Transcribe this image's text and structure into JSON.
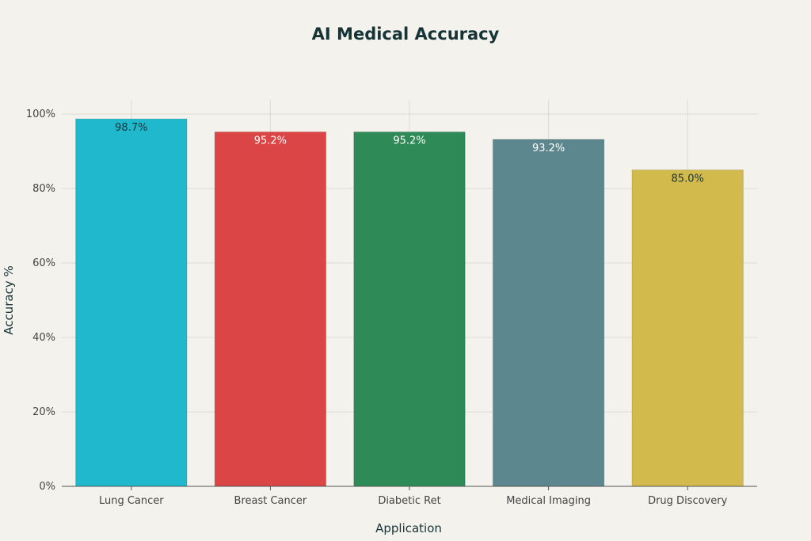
{
  "chart_data": {
    "type": "bar",
    "title": "AI Medical Accuracy",
    "xlabel": "Application",
    "ylabel": "Accuracy %",
    "categories": [
      "Lung Cancer",
      "Breast Cancer",
      "Diabetic Ret",
      "Medical Imaging",
      "Drug Discovery"
    ],
    "values": [
      98.7,
      95.2,
      95.2,
      93.2,
      85.0
    ],
    "data_labels": [
      "98.7%",
      "95.2%",
      "95.2%",
      "93.2%",
      "85.0%"
    ],
    "ylim": [
      0,
      100
    ],
    "y_ticks": [
      0,
      20,
      40,
      60,
      80,
      100
    ],
    "y_tick_labels": [
      "0%",
      "20%",
      "40%",
      "60%",
      "80%",
      "100%"
    ],
    "colors": [
      "#1fb8cd",
      "#db4545",
      "#2e8b57",
      "#5d878f",
      "#d2ba4c"
    ],
    "label_colors": [
      "#163336",
      "#ffffff",
      "#ffffff",
      "#ffffff",
      "#163336"
    ],
    "grid": true,
    "legend": "none"
  }
}
